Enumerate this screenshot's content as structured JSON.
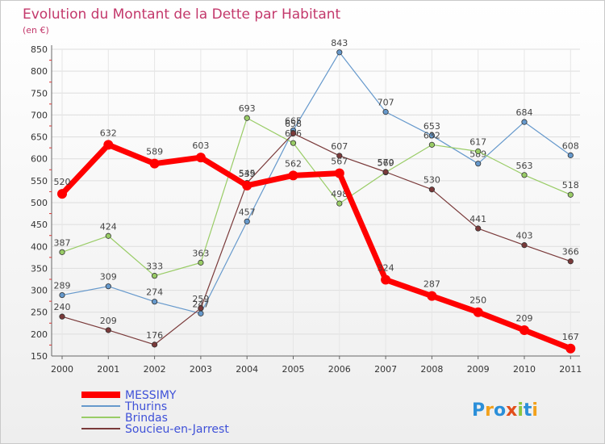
{
  "chart_data": {
    "type": "line",
    "title": "Evolution du Montant de la Dette par Habitant",
    "subtitle": "(en €)",
    "x": [
      "2000",
      "2001",
      "2002",
      "2003",
      "2004",
      "2005",
      "2006",
      "2007",
      "2008",
      "2009",
      "2010",
      "2011"
    ],
    "ylim": [
      150,
      850
    ],
    "yticks": [
      150,
      200,
      250,
      300,
      350,
      400,
      450,
      500,
      550,
      600,
      650,
      700,
      750,
      800,
      850
    ],
    "grid": true,
    "legend_position": "bottom-left",
    "series": [
      {
        "name": "MESSIMY",
        "color": "#ff0000",
        "values": [
          520,
          632,
          589,
          603,
          539,
          562,
          567,
          324,
          287,
          250,
          209,
          167
        ]
      },
      {
        "name": "Thurins",
        "color": "#6699cc",
        "values": [
          289,
          309,
          274,
          247,
          457,
          665,
          843,
          707,
          653,
          589,
          684,
          608
        ]
      },
      {
        "name": "Brindas",
        "color": "#99cc66",
        "values": [
          387,
          424,
          333,
          363,
          693,
          636,
          498,
          569,
          632,
          617,
          563,
          518
        ]
      },
      {
        "name": "Soucieu-en-Jarrest",
        "color": "#7a3a3a",
        "values": [
          240,
          209,
          176,
          259,
          545,
          658,
          607,
          570,
          530,
          441,
          403,
          366
        ]
      }
    ]
  },
  "brand": {
    "text": "Proxiti",
    "colors": [
      "#2b8fd9",
      "#f2a11c",
      "#2b8fd9",
      "#e24e1b",
      "#8dc63f",
      "#2b8fd9",
      "#f2a11c"
    ]
  }
}
